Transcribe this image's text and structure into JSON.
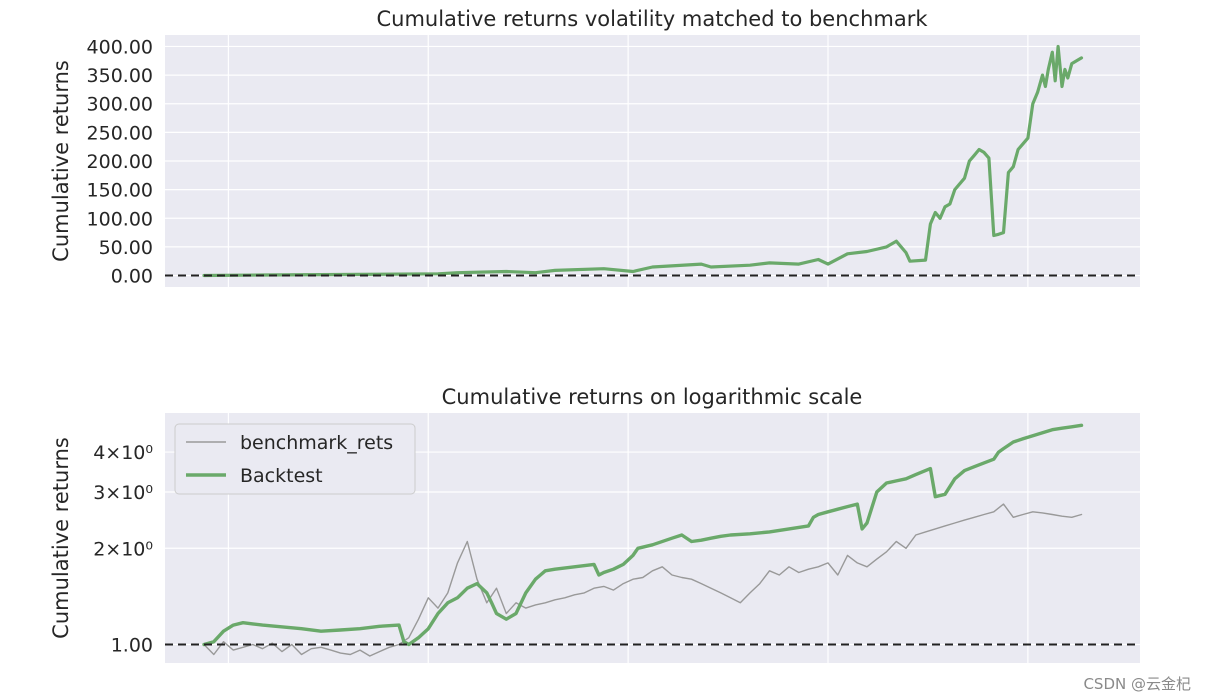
{
  "watermark": "CSDN @云金杞",
  "chart_data": [
    {
      "type": "line",
      "title": "Cumulative returns volatility matched to benchmark",
      "xlabel": "",
      "ylabel": "Cumulative returns",
      "grid": true,
      "background": "#eaeaf2",
      "ylim": [
        -20,
        420
      ],
      "yticks": [
        0,
        50,
        100,
        150,
        200,
        250,
        300,
        350,
        400
      ],
      "ytick_labels": [
        "0.00",
        "50.00",
        "100.00",
        "150.00",
        "200.00",
        "250.00",
        "300.00",
        "350.00",
        "400.00"
      ],
      "xlim": [
        0,
        100
      ],
      "xgrid": [
        6.5,
        27.0,
        47.5,
        68.0,
        88.5
      ],
      "hline": {
        "y": 0,
        "style": "dashed",
        "color": "#222222"
      },
      "series": [
        {
          "color": "#6aa96a",
          "x": [
            4,
            10,
            20,
            28,
            30,
            35,
            38,
            40,
            45,
            48,
            50,
            55,
            56,
            60,
            62,
            65,
            67,
            68,
            70,
            72,
            74,
            75,
            76,
            76.4,
            78,
            78.5,
            79,
            79.5,
            80,
            80.5,
            81,
            82,
            82.5,
            83,
            83.5,
            84,
            84.5,
            85,
            85.5,
            86,
            86.5,
            87,
            87.5,
            88,
            88.5,
            89,
            89.5,
            90,
            90.3,
            90.6,
            91,
            91.3,
            91.6,
            92,
            92.3,
            92.6,
            93,
            93.5,
            94
          ],
          "y": [
            0,
            1,
            2,
            3,
            5,
            7,
            5,
            9,
            12,
            7,
            15,
            20,
            15,
            18,
            22,
            20,
            28,
            20,
            38,
            42,
            50,
            60,
            40,
            25,
            27,
            90,
            110,
            100,
            120,
            125,
            150,
            170,
            200,
            210,
            220,
            215,
            205,
            70,
            72,
            75,
            180,
            190,
            220,
            230,
            240,
            300,
            320,
            350,
            330,
            360,
            390,
            340,
            400,
            330,
            360,
            345,
            370,
            375,
            380
          ]
        }
      ]
    },
    {
      "type": "line",
      "title": "Cumulative returns on logarithmic scale",
      "xlabel": "",
      "ylabel": "Cumulative returns",
      "yscale": "log",
      "grid": true,
      "background": "#eaeaf2",
      "ylim": [
        0.875,
        5.3
      ],
      "yticks": [
        1,
        2,
        3,
        4
      ],
      "ytick_labels": [
        "1.00",
        "2×10⁰",
        "3×10⁰",
        "4×10⁰"
      ],
      "xlim": [
        0,
        100
      ],
      "xgrid": [
        6.5,
        27.0,
        47.5,
        68.0,
        88.5
      ],
      "hline": {
        "y": 1,
        "style": "dashed",
        "color": "#222222"
      },
      "legend": {
        "placement": "top-left"
      },
      "series": [
        {
          "name": "benchmark_rets",
          "color": "#999999",
          "width": 1.4,
          "x": [
            4,
            5,
            6,
            7,
            8,
            9,
            10,
            11,
            12,
            13,
            14,
            15,
            16,
            17,
            18,
            19,
            20,
            21,
            22,
            23,
            24,
            25,
            26,
            27,
            28,
            29,
            30,
            31,
            32,
            33,
            34,
            35,
            36,
            37,
            38,
            39,
            40,
            41,
            42,
            43,
            44,
            45,
            46,
            47,
            48,
            49,
            50,
            51,
            52,
            53,
            54,
            55,
            56,
            57,
            58,
            59,
            60,
            61,
            62,
            63,
            64,
            65,
            66,
            67,
            68,
            69,
            70,
            71,
            72,
            73,
            74,
            75,
            76,
            77,
            78,
            79,
            80,
            81,
            82,
            83,
            84,
            85,
            86,
            87,
            88,
            89,
            90,
            91,
            92,
            93,
            94
          ],
          "y": [
            1.0,
            0.93,
            1.02,
            0.96,
            0.98,
            1.0,
            0.97,
            1.01,
            0.95,
            1.0,
            0.93,
            0.97,
            0.98,
            0.96,
            0.94,
            0.93,
            0.96,
            0.92,
            0.95,
            0.98,
            1.0,
            1.05,
            1.2,
            1.4,
            1.3,
            1.45,
            1.8,
            2.1,
            1.6,
            1.35,
            1.5,
            1.25,
            1.35,
            1.3,
            1.33,
            1.35,
            1.38,
            1.4,
            1.43,
            1.45,
            1.5,
            1.52,
            1.48,
            1.55,
            1.6,
            1.62,
            1.7,
            1.75,
            1.65,
            1.62,
            1.6,
            1.55,
            1.5,
            1.45,
            1.4,
            1.35,
            1.45,
            1.55,
            1.7,
            1.65,
            1.75,
            1.68,
            1.72,
            1.75,
            1.8,
            1.65,
            1.9,
            1.8,
            1.75,
            1.85,
            1.95,
            2.1,
            2.0,
            2.2,
            2.25,
            2.3,
            2.35,
            2.4,
            2.45,
            2.5,
            2.55,
            2.6,
            2.75,
            2.5,
            2.55,
            2.6,
            2.58,
            2.55,
            2.52,
            2.5,
            2.55
          ]
        },
        {
          "name": "Backtest",
          "color": "#6aa96a",
          "width": 3.4,
          "x": [
            4,
            5,
            6,
            7,
            8,
            9,
            10,
            14,
            16,
            18,
            20,
            22,
            24,
            24.5,
            25,
            26,
            27,
            28,
            29,
            30,
            31,
            32,
            33,
            33.5,
            34,
            35,
            36,
            37,
            38,
            38.5,
            39,
            40,
            42,
            44,
            44.5,
            45,
            46,
            47,
            48,
            48.5,
            50,
            52,
            53,
            54,
            55,
            56,
            57,
            58,
            60,
            62,
            64,
            66,
            66.5,
            67,
            68,
            69,
            70,
            71,
            71.5,
            72,
            73,
            74,
            75,
            76,
            76.5,
            77,
            78,
            78.5,
            79,
            80,
            81,
            82,
            83,
            84,
            85,
            85.5,
            86,
            87,
            88,
            89,
            90,
            91,
            92,
            93,
            94
          ],
          "y": [
            1.0,
            1.02,
            1.1,
            1.15,
            1.17,
            1.16,
            1.15,
            1.12,
            1.1,
            1.11,
            1.12,
            1.14,
            1.15,
            1.02,
            1.0,
            1.05,
            1.12,
            1.25,
            1.35,
            1.4,
            1.5,
            1.55,
            1.45,
            1.35,
            1.25,
            1.2,
            1.25,
            1.45,
            1.6,
            1.65,
            1.7,
            1.72,
            1.75,
            1.78,
            1.65,
            1.68,
            1.72,
            1.78,
            1.9,
            2.0,
            2.05,
            2.15,
            2.2,
            2.1,
            2.12,
            2.15,
            2.18,
            2.2,
            2.22,
            2.25,
            2.3,
            2.35,
            2.5,
            2.55,
            2.6,
            2.65,
            2.7,
            2.75,
            2.3,
            2.4,
            3.0,
            3.2,
            3.25,
            3.3,
            3.35,
            3.4,
            3.5,
            3.55,
            2.9,
            2.95,
            3.3,
            3.5,
            3.6,
            3.7,
            3.8,
            4.0,
            4.1,
            4.3,
            4.4,
            4.5,
            4.6,
            4.7,
            4.75,
            4.8,
            4.85
          ]
        }
      ]
    }
  ]
}
